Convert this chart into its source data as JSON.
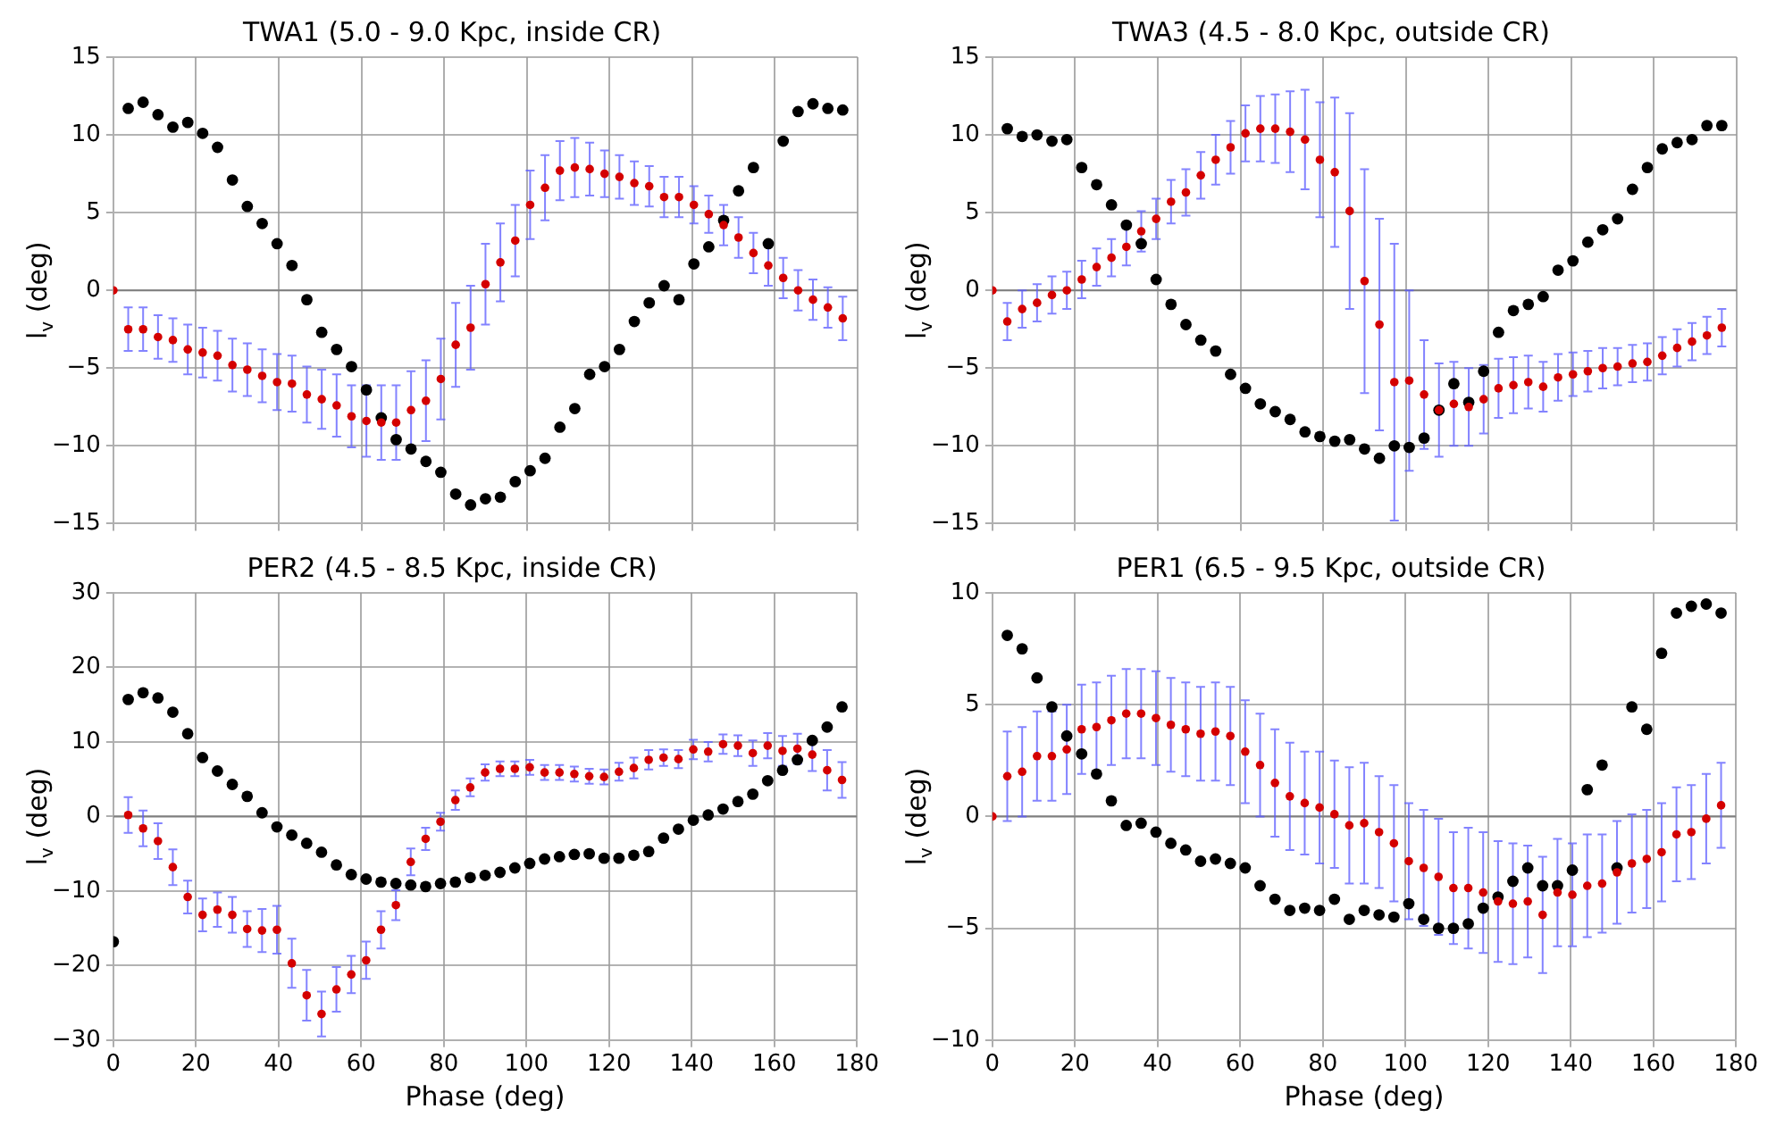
{
  "chart_data": [
    {
      "type": "scatter",
      "title": "TWA1 (5.0 - 9.0 Kpc, inside CR)",
      "ylabel": "l$_{v}$ (deg)",
      "x": [
        0,
        3.6,
        7.2,
        10.8,
        14.4,
        18,
        21.6,
        25.2,
        28.8,
        32.4,
        36,
        39.6,
        43.2,
        46.8,
        50.4,
        54,
        57.6,
        61.2,
        64.8,
        68.4,
        72,
        75.6,
        79.2,
        82.8,
        86.4,
        90,
        93.6,
        97.2,
        100.8,
        104.4,
        108,
        111.6,
        115.2,
        118.8,
        122.4,
        126,
        129.6,
        133.2,
        136.8,
        140.4,
        144,
        147.6,
        151.2,
        154.8,
        158.4,
        162,
        165.6,
        169.2,
        172.8,
        176.4
      ],
      "xlim": [
        0,
        180
      ],
      "xticks": [
        0,
        20,
        40,
        60,
        80,
        100,
        120,
        140,
        160,
        180
      ],
      "ylim": [
        -15,
        15
      ],
      "yticks": [
        -15,
        -10,
        -5,
        0,
        5,
        10,
        15
      ],
      "tick_labels": "y",
      "grid": true,
      "marker": "circle",
      "ref_lines": [
        {
          "axis": "y",
          "value": 0,
          "color": "#808080"
        }
      ],
      "series": [
        {
          "color": "#000000",
          "values": [
            null,
            11.7,
            12.1,
            11.3,
            10.5,
            10.8,
            10.1,
            9.2,
            7.1,
            5.4,
            4.3,
            3.0,
            1.6,
            -0.6,
            -2.7,
            -3.8,
            -4.9,
            -6.4,
            -8.2,
            -9.6,
            -10.2,
            -11.0,
            -11.7,
            -13.1,
            -13.8,
            -13.4,
            -13.3,
            -12.3,
            -11.6,
            -10.8,
            -8.8,
            -7.6,
            -5.4,
            -4.9,
            -3.8,
            -2.0,
            -0.8,
            0.3,
            -0.6,
            1.7,
            2.8,
            4.5,
            6.4,
            7.9,
            3.0,
            9.6,
            11.5,
            12.0,
            11.7,
            11.6
          ]
        },
        {
          "color": "#d40000",
          "values": [
            0,
            -2.5,
            -2.5,
            -3.0,
            -3.2,
            -3.8,
            -4.0,
            -4.2,
            -4.8,
            -5.1,
            -5.5,
            -5.9,
            -6.0,
            -6.7,
            -7.0,
            -7.4,
            -8.1,
            -8.4,
            -8.5,
            -8.5,
            -7.7,
            -7.1,
            -5.7,
            -3.5,
            -2.4,
            0.4,
            1.8,
            3.2,
            5.5,
            6.6,
            7.7,
            7.9,
            7.8,
            7.5,
            7.3,
            6.9,
            6.7,
            6.0,
            6.0,
            5.5,
            4.9,
            4.2,
            3.4,
            2.4,
            1.6,
            0.8,
            0.0,
            -0.6,
            -1.1,
            -1.8
          ],
          "errors": [
            null,
            1.4,
            1.4,
            1.4,
            1.4,
            1.6,
            1.6,
            1.6,
            1.7,
            1.7,
            1.7,
            1.8,
            1.8,
            1.8,
            1.9,
            2.0,
            2.0,
            2.3,
            2.4,
            2.4,
            2.5,
            2.6,
            2.6,
            2.7,
            2.7,
            2.6,
            2.5,
            2.3,
            2.2,
            2.1,
            1.9,
            1.9,
            1.7,
            1.5,
            1.4,
            1.4,
            1.3,
            1.3,
            1.3,
            1.2,
            1.2,
            1.3,
            1.3,
            1.3,
            1.3,
            1.3,
            1.3,
            1.3,
            1.3,
            1.4
          ]
        }
      ]
    },
    {
      "type": "scatter",
      "title": "TWA3 (4.5 - 8.0 Kpc, outside CR)",
      "ylabel": "l$_{v}$ (deg)",
      "x": [
        0,
        3.6,
        7.2,
        10.8,
        14.4,
        18,
        21.6,
        25.2,
        28.8,
        32.4,
        36,
        39.6,
        43.2,
        46.8,
        50.4,
        54,
        57.6,
        61.2,
        64.8,
        68.4,
        72,
        75.6,
        79.2,
        82.8,
        86.4,
        90,
        93.6,
        97.2,
        100.8,
        104.4,
        108,
        111.6,
        115.2,
        118.8,
        122.4,
        126,
        129.6,
        133.2,
        136.8,
        140.4,
        144,
        147.6,
        151.2,
        154.8,
        158.4,
        162,
        165.6,
        169.2,
        172.8,
        176.4
      ],
      "xlim": [
        0,
        180
      ],
      "xticks": [
        0,
        20,
        40,
        60,
        80,
        100,
        120,
        140,
        160,
        180
      ],
      "ylim": [
        -15,
        15
      ],
      "yticks": [
        -15,
        -10,
        -5,
        0,
        5,
        10,
        15
      ],
      "tick_labels": "y",
      "grid": true,
      "marker": "circle",
      "ref_lines": [
        {
          "axis": "y",
          "value": 0,
          "color": "#808080"
        }
      ],
      "series": [
        {
          "color": "#000000",
          "values": [
            null,
            10.4,
            9.9,
            10.0,
            9.6,
            9.7,
            7.9,
            6.8,
            5.5,
            4.2,
            3.0,
            0.7,
            -0.9,
            -2.2,
            -3.2,
            -3.9,
            -5.4,
            -6.3,
            -7.3,
            -7.8,
            -8.3,
            -9.1,
            -9.4,
            -9.7,
            -9.6,
            -10.2,
            -10.8,
            -10.0,
            -10.1,
            -9.5,
            -7.7,
            -6.0,
            -7.2,
            -5.2,
            -2.7,
            -1.3,
            -0.9,
            -0.4,
            1.3,
            1.9,
            3.1,
            3.9,
            4.6,
            6.5,
            7.9,
            9.1,
            9.5,
            9.7,
            10.6,
            10.6
          ]
        },
        {
          "color": "#d40000",
          "values": [
            0,
            -2.0,
            -1.2,
            -0.8,
            -0.3,
            0.0,
            0.7,
            1.5,
            2.1,
            2.8,
            3.8,
            4.6,
            5.7,
            6.3,
            7.4,
            8.4,
            9.2,
            10.1,
            10.4,
            10.4,
            10.2,
            9.7,
            8.4,
            7.6,
            5.1,
            0.6,
            -2.2,
            -5.9,
            -5.8,
            -6.7,
            -7.7,
            -7.3,
            -7.5,
            -7.0,
            -6.3,
            -6.1,
            -5.9,
            -6.2,
            -5.6,
            -5.4,
            -5.2,
            -5.0,
            -4.9,
            -4.7,
            -4.6,
            -4.2,
            -3.7,
            -3.3,
            -2.9,
            -2.4
          ],
          "errors": [
            null,
            1.2,
            1.2,
            1.2,
            1.2,
            1.2,
            1.2,
            1.2,
            1.2,
            1.2,
            1.3,
            1.3,
            1.4,
            1.5,
            1.5,
            1.6,
            1.7,
            1.8,
            2.1,
            2.2,
            2.6,
            3.2,
            3.7,
            4.8,
            6.3,
            7.2,
            6.8,
            8.9,
            5.8,
            3.5,
            3.0,
            2.7,
            2.5,
            2.2,
            1.9,
            1.8,
            1.7,
            1.6,
            1.5,
            1.4,
            1.3,
            1.3,
            1.2,
            1.2,
            1.2,
            1.2,
            1.2,
            1.2,
            1.2,
            1.2
          ]
        }
      ]
    },
    {
      "type": "scatter",
      "title": "PER2 (4.5 - 8.5 Kpc, inside CR)",
      "xlabel": "Phase (deg)",
      "ylabel": "l$_{v}$ (deg)",
      "x": [
        0,
        3.6,
        7.2,
        10.8,
        14.4,
        18,
        21.6,
        25.2,
        28.8,
        32.4,
        36,
        39.6,
        43.2,
        46.8,
        50.4,
        54,
        57.6,
        61.2,
        64.8,
        68.4,
        72,
        75.6,
        79.2,
        82.8,
        86.4,
        90,
        93.6,
        97.2,
        100.8,
        104.4,
        108,
        111.6,
        115.2,
        118.8,
        122.4,
        126,
        129.6,
        133.2,
        136.8,
        140.4,
        144,
        147.6,
        151.2,
        154.8,
        158.4,
        162,
        165.6,
        169.2,
        172.8,
        176.4
      ],
      "xlim": [
        0,
        180
      ],
      "xticks": [
        0,
        20,
        40,
        60,
        80,
        100,
        120,
        140,
        160,
        180
      ],
      "ylim": [
        -30,
        30
      ],
      "yticks": [
        -30,
        -20,
        -10,
        0,
        10,
        20,
        30
      ],
      "grid": true,
      "marker": "circle",
      "ref_lines": [
        {
          "axis": "y",
          "value": 0,
          "color": "#808080"
        }
      ],
      "series": [
        {
          "color": "#000000",
          "values": [
            -16.8,
            15.7,
            16.6,
            15.9,
            14.0,
            11.1,
            7.9,
            6.1,
            4.3,
            2.7,
            0.5,
            -1.4,
            -2.5,
            -3.6,
            -4.8,
            -6.5,
            -7.8,
            -8.4,
            -8.8,
            -9.0,
            -9.2,
            -9.4,
            -9.0,
            -8.8,
            -8.2,
            -7.9,
            -7.5,
            -6.9,
            -6.3,
            -5.7,
            -5.4,
            -5.1,
            -5.0,
            -5.6,
            -5.6,
            -5.2,
            -4.7,
            -2.9,
            -1.7,
            -0.5,
            0.2,
            1.0,
            2.0,
            3.0,
            4.8,
            6.2,
            7.6,
            10.2,
            12.0,
            14.7
          ]
        },
        {
          "color": "#d40000",
          "values": [
            null,
            0.2,
            -1.6,
            -3.3,
            -6.8,
            -10.8,
            -13.2,
            -12.5,
            -13.2,
            -15.1,
            -15.3,
            -15.2,
            -19.7,
            -24.0,
            -26.5,
            -23.2,
            -21.2,
            -19.3,
            -15.2,
            -11.9,
            -6.1,
            -3.0,
            -0.7,
            2.2,
            3.9,
            5.9,
            6.4,
            6.4,
            6.6,
            5.9,
            5.9,
            5.7,
            5.4,
            5.3,
            6.0,
            6.5,
            7.6,
            7.9,
            7.7,
            9.0,
            8.7,
            9.7,
            9.5,
            8.5,
            9.5,
            8.8,
            9.1,
            8.3,
            6.2,
            4.9
          ],
          "errors": [
            null,
            2.4,
            2.4,
            2.4,
            2.4,
            2.2,
            2.2,
            2.3,
            2.4,
            2.4,
            2.9,
            3.2,
            3.3,
            3.4,
            3.0,
            3.0,
            2.5,
            2.5,
            2.5,
            2.0,
            1.8,
            1.5,
            1.2,
            1.3,
            1.2,
            1.1,
            1.0,
            1.0,
            1.0,
            1.0,
            1.0,
            1.0,
            1.0,
            1.0,
            1.2,
            1.4,
            1.3,
            1.1,
            1.2,
            1.3,
            1.3,
            1.3,
            1.4,
            1.7,
            1.7,
            2.0,
            2.0,
            2.2,
            2.7,
            2.4
          ]
        }
      ]
    },
    {
      "type": "scatter",
      "title": "PER1 (6.5 - 9.5 Kpc, outside CR)",
      "xlabel": "Phase (deg)",
      "ylabel": "l$_{v}$ (deg)",
      "x": [
        0,
        3.6,
        7.2,
        10.8,
        14.4,
        18,
        21.6,
        25.2,
        28.8,
        32.4,
        36,
        39.6,
        43.2,
        46.8,
        50.4,
        54,
        57.6,
        61.2,
        64.8,
        68.4,
        72,
        75.6,
        79.2,
        82.8,
        86.4,
        90,
        93.6,
        97.2,
        100.8,
        104.4,
        108,
        111.6,
        115.2,
        118.8,
        122.4,
        126,
        129.6,
        133.2,
        136.8,
        140.4,
        144,
        147.6,
        151.2,
        154.8,
        158.4,
        162,
        165.6,
        169.2,
        172.8,
        176.4
      ],
      "xlim": [
        0,
        180
      ],
      "xticks": [
        0,
        20,
        40,
        60,
        80,
        100,
        120,
        140,
        160,
        180
      ],
      "ylim": [
        -10,
        10
      ],
      "yticks": [
        -10,
        -5,
        0,
        5,
        10
      ],
      "grid": true,
      "marker": "circle",
      "ref_lines": [
        {
          "axis": "y",
          "value": 0,
          "color": "#808080"
        }
      ],
      "series": [
        {
          "color": "#000000",
          "values": [
            null,
            8.1,
            7.5,
            6.2,
            4.9,
            3.6,
            2.8,
            1.9,
            0.7,
            -0.4,
            -0.3,
            -0.7,
            -1.2,
            -1.5,
            -2.0,
            -1.9,
            -2.1,
            -2.3,
            -3.1,
            -3.7,
            -4.2,
            -4.1,
            -4.2,
            -3.7,
            -4.6,
            -4.2,
            -4.4,
            -4.5,
            -3.9,
            -4.6,
            -5.0,
            -5.0,
            -4.8,
            -4.1,
            -3.6,
            -2.9,
            -2.3,
            -3.1,
            -3.1,
            -2.4,
            1.2,
            2.3,
            -2.3,
            4.9,
            3.9,
            7.3,
            9.1,
            9.4,
            9.5,
            9.1
          ]
        },
        {
          "color": "#d40000",
          "values": [
            0,
            1.8,
            2.0,
            2.7,
            2.7,
            3.0,
            3.9,
            4.0,
            4.3,
            4.6,
            4.6,
            4.4,
            4.1,
            3.9,
            3.7,
            3.8,
            3.6,
            2.9,
            2.3,
            1.5,
            0.9,
            0.6,
            0.4,
            0.1,
            -0.4,
            -0.3,
            -0.7,
            -1.2,
            -2.0,
            -2.3,
            -2.7,
            -3.2,
            -3.2,
            -3.4,
            -3.8,
            -3.9,
            -3.8,
            -4.4,
            -3.4,
            -3.5,
            -3.1,
            -3.0,
            -2.5,
            -2.1,
            -1.9,
            -1.6,
            -0.8,
            -0.7,
            -0.1,
            0.5
          ],
          "errors": [
            null,
            2.0,
            2.0,
            2.0,
            2.0,
            2.0,
            2.0,
            2.0,
            2.0,
            2.0,
            2.0,
            2.1,
            2.1,
            2.1,
            2.1,
            2.2,
            2.2,
            2.3,
            2.3,
            2.4,
            2.4,
            2.3,
            2.5,
            2.4,
            2.6,
            2.7,
            2.5,
            2.6,
            2.6,
            2.6,
            2.6,
            2.5,
            2.7,
            2.7,
            2.7,
            2.7,
            2.5,
            2.6,
            2.4,
            2.3,
            2.3,
            2.2,
            2.3,
            2.2,
            2.2,
            2.2,
            2.1,
            2.1,
            2.0,
            1.9
          ]
        }
      ]
    }
  ]
}
